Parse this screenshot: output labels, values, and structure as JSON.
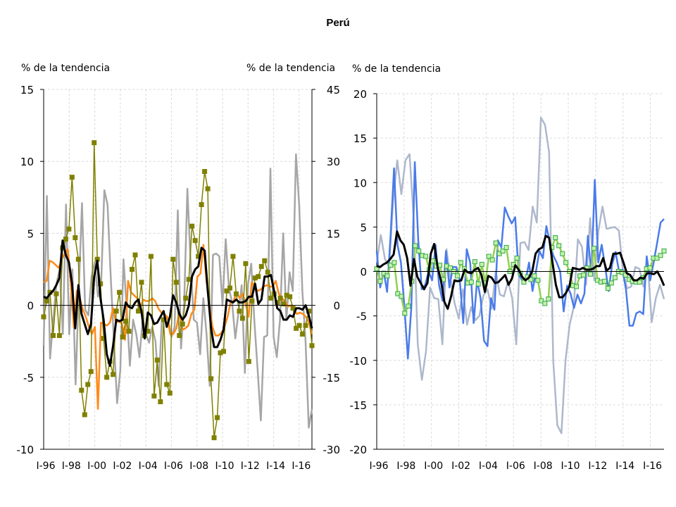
{
  "title": "Perú",
  "chart_data": [
    {
      "type": "line",
      "ylabel_left": "% de la tendencia",
      "ylabel_right": "% de la tendencia",
      "ylim_left": [
        -10,
        15
      ],
      "yticks_left": [
        15,
        10,
        5,
        0,
        -5,
        -10
      ],
      "ylim_right": [
        -30,
        45
      ],
      "yticks_right": [
        45,
        30,
        15,
        0,
        -15,
        -30
      ],
      "xticks": [
        "I-96",
        "I-98",
        "I-00",
        "I-02",
        "I-04",
        "I-06",
        "I-08",
        "I-10",
        "I-12",
        "I-14",
        "I-16"
      ],
      "grid": true,
      "series": [
        {
          "color": "#A6A6A6",
          "width": 2.5,
          "markers": false,
          "values": [
            -2.8,
            7.6,
            -3.7,
            -1.0,
            1.5,
            2.5,
            -2.0,
            7.0,
            -2.0,
            2.5,
            -5.5,
            1.0,
            7.1,
            -0.3,
            -0.7,
            2.0,
            3.0,
            0.6,
            1.5,
            8.0,
            7.0,
            2.0,
            -2.5,
            -6.8,
            -4.5,
            3.2,
            -0.2,
            -4.2,
            -1.0,
            -2.0,
            -3.6,
            -1.0,
            -2.0,
            -2.6,
            -1.5,
            -2.5,
            -5.6,
            -1.0,
            -0.8,
            -1.0,
            -2.2,
            -1.5,
            6.6,
            -3.0,
            0.2,
            8.1,
            3.0,
            -1.0,
            -1.2,
            -3.4,
            0.5,
            -2.0,
            -5.6,
            3.5,
            3.6,
            3.4,
            0.0,
            4.6,
            1.2,
            0.2,
            -2.3,
            -0.5,
            1.4,
            -4.7,
            1.5,
            2.9,
            -1.2,
            -4.5,
            -8.0,
            -2.2,
            -2.1,
            9.5,
            -2.2,
            -3.6,
            -1.0,
            5.0,
            -1.0,
            2.3,
            1.0,
            10.5,
            7.0,
            1.0,
            -2.5,
            -8.5,
            -7.2
          ]
        },
        {
          "color": "#FF8A1A",
          "width": 2.5,
          "markers": false,
          "values": [
            1.6,
            1.7,
            3.1,
            3.0,
            2.8,
            2.6,
            3.2,
            3.6,
            3.9,
            1.5,
            -1.5,
            1.0,
            0.5,
            -0.3,
            -0.8,
            -1.5,
            -2.0,
            -1.5,
            -7.2,
            -1.2,
            -1.3,
            -1.4,
            -1.2,
            -0.2,
            -1.2,
            -1.1,
            -1.3,
            -2.4,
            1.7,
            0.9,
            0.7,
            0.5,
            -0.2,
            0.4,
            0.3,
            0.3,
            0.5,
            0.3,
            -0.2,
            -0.5,
            -0.6,
            -0.8,
            -2.0,
            -2.0,
            -1.6,
            -0.5,
            -1.7,
            -1.6,
            -1.4,
            -0.6,
            -0.3,
            2.0,
            2.2,
            4.2,
            1.7,
            0.0,
            -1.5,
            -2.1,
            -2.1,
            -1.9,
            -1.5,
            -0.8,
            0.2,
            0.3,
            0.9,
            0.5,
            0.8,
            0.1,
            -0.8,
            1.6,
            1.3,
            1.0,
            1.1,
            1.3,
            1.4,
            1.3,
            1.3,
            1.7,
            0.8,
            0.5,
            0.3,
            -0.1,
            0.0,
            -0.3,
            -0.6,
            -0.5,
            -0.6,
            -0.8,
            -1.2,
            -2.0
          ]
        },
        {
          "color": "#808000",
          "width": 1.5,
          "markers": true,
          "marker_fill": "#808000",
          "values": [
            -0.8,
            0.3,
            0.9,
            -2.1,
            0.8,
            -2.1,
            4.0,
            4.6,
            5.3,
            8.9,
            4.7,
            3.2,
            -5.9,
            -7.6,
            -5.5,
            -4.6,
            11.3,
            3.2,
            1.5,
            -2.3,
            -5.0,
            -3.9,
            -4.8,
            -0.4,
            0.9,
            -2.2,
            -1.1,
            -1.8,
            2.5,
            3.5,
            -0.4,
            1.6,
            -2.1,
            -1.8,
            3.4,
            -6.3,
            -3.8,
            -6.7,
            -1.0,
            -5.5,
            -6.1,
            3.2,
            1.6,
            -2.1,
            -1.3,
            0.5,
            1.8,
            5.5,
            4.5,
            3.4,
            7.0,
            9.3,
            8.1,
            -5.1,
            -9.2,
            -7.8,
            -3.3,
            -3.2,
            1.0,
            1.2,
            3.4,
            0.8,
            -0.4,
            -0.9,
            2.9,
            -3.9,
            0.3,
            1.9,
            2.0,
            2.7,
            3.1,
            2.3,
            0.5,
            0.8,
            0.2,
            0.5,
            0.1,
            0.7,
            0.6,
            -0.2,
            -1.6,
            -1.4,
            -2.0,
            -1.4,
            -0.4,
            -2.8
          ]
        },
        {
          "color": "#000000",
          "width": 3,
          "markers": false,
          "values": [
            0.6,
            0.5,
            0.8,
            1.0,
            1.4,
            1.9,
            4.5,
            3.5,
            3.0,
            1.5,
            -1.6,
            1.4,
            -0.6,
            -1.3,
            -2.0,
            -1.3,
            2.0,
            3.1,
            0.5,
            -1.0,
            -3.4,
            -4.2,
            -2.8,
            -1.0,
            -1.1,
            -1.0,
            0.2,
            -0.1,
            -0.2,
            0.2,
            0.4,
            -0.4,
            -2.3,
            -0.5,
            -0.7,
            -1.3,
            -1.2,
            -0.8,
            -0.4,
            -1.5,
            -0.8,
            0.7,
            0.2,
            -0.6,
            -1.0,
            -0.7,
            0.0,
            2.0,
            2.5,
            2.7,
            4.0,
            3.8,
            1.0,
            -1.5,
            -2.9,
            -2.9,
            -2.4,
            -1.7,
            0.4,
            0.3,
            0.2,
            0.4,
            0.2,
            0.2,
            0.3,
            0.6,
            0.6,
            1.5,
            0.1,
            0.4,
            2.0,
            2.0,
            2.1,
            1.0,
            -0.2,
            -0.4,
            -1.0,
            -1.0,
            -0.7,
            -0.8,
            -0.2,
            -0.2,
            -0.3,
            0.0,
            -0.7,
            -1.6
          ]
        }
      ]
    },
    {
      "type": "line",
      "ylabel_left": "% de la tendencia",
      "ylim_left": [
        -20,
        20
      ],
      "yticks_left": [
        20,
        15,
        10,
        5,
        0,
        -5,
        -10,
        -15,
        -20
      ],
      "xticks": [
        "I-96",
        "I-98",
        "I-00",
        "I-02",
        "I-04",
        "I-06",
        "I-08",
        "I-10",
        "I-12",
        "I-14",
        "I-16"
      ],
      "grid": true,
      "series": [
        {
          "color": "#AEB8CC",
          "width": 2.5,
          "markers": false,
          "values": [
            1.0,
            4.1,
            1.4,
            0.5,
            8.0,
            12.5,
            8.7,
            12.5,
            13.2,
            6.0,
            -8.2,
            -12.2,
            -9.0,
            -1.8,
            -3.0,
            -3.1,
            -8.2,
            2.5,
            -1.0,
            -3.6,
            -5.3,
            -2.0,
            -6.0,
            -4.0,
            -5.5,
            -5.0,
            -2.7,
            -2.0,
            -4.2,
            0.0,
            -2.6,
            -2.8,
            -1.1,
            -3.0,
            -8.2,
            3.2,
            3.3,
            2.4,
            7.3,
            5.5,
            17.3,
            16.5,
            13.4,
            -10.0,
            -17.3,
            -18.2,
            -10.0,
            -6.0,
            -4.0,
            3.6,
            2.8,
            -1.5,
            6.0,
            -1.0,
            4.5,
            7.3,
            4.8,
            4.9,
            5.0,
            4.6,
            0.0,
            -1.9,
            -1.7,
            0.5,
            0.3,
            -1.7,
            1.0,
            -5.7,
            -3.0,
            -1.5,
            -3.1
          ]
        },
        {
          "color": "#4A7BEA",
          "width": 2.5,
          "markers": false,
          "values": [
            2.3,
            -1.8,
            0.0,
            -2.3,
            4.0,
            11.6,
            3.0,
            1.0,
            -4.0,
            -9.8,
            -4.0,
            12.3,
            3.5,
            -2.0,
            -1.5,
            0.0,
            -1.0,
            3.0,
            -1.5,
            -3.3,
            2.3,
            -1.8,
            0.5,
            0.5,
            -1.0,
            -5.8,
            2.5,
            1.0,
            -5.8,
            -1.0,
            -3.0,
            -7.8,
            -8.4,
            -3.0,
            -4.3,
            3.5,
            2.7,
            7.2,
            6.2,
            5.4,
            6.1,
            -0.3,
            -1.0,
            -1.0,
            1.0,
            -2.2,
            0.0,
            2.3,
            1.5,
            5.1,
            3.3,
            1.8,
            1.0,
            0.0,
            -4.5,
            -1.6,
            -2.5,
            -4.1,
            -2.6,
            -3.6,
            -2.5,
            4.0,
            -0.3,
            10.3,
            1.0,
            3.0,
            0.5,
            -2.2,
            0.8,
            2.2,
            0.0,
            0.2,
            -2.0,
            -6.1,
            -6.1,
            -4.7,
            -4.5,
            -4.8,
            1.7,
            -1.0,
            1.0,
            3.2,
            5.5,
            5.9
          ]
        },
        {
          "color": "#92D050",
          "width": 2.5,
          "markers": true,
          "marker_fill": "#C8F0A8",
          "marker_stroke": "#2EAA4A",
          "values": [
            0.3,
            -1.1,
            -0.2,
            -0.5,
            0.7,
            1.0,
            -2.5,
            -2.8,
            -4.7,
            -3.9,
            -1.1,
            2.9,
            2.3,
            1.8,
            1.7,
            0.2,
            1.2,
            0.6,
            0.7,
            -0.9,
            0.6,
            0.4,
            0.0,
            -0.5,
            1.0,
            0.3,
            -1.3,
            -1.2,
            1.1,
            -1.4,
            0.8,
            -1.3,
            1.7,
            1.3,
            3.2,
            2.0,
            2.3,
            2.7,
            0.0,
            0.8,
            1.5,
            -0.2,
            -1.2,
            -0.6,
            -0.9,
            -0.5,
            -1.0,
            -3.3,
            -3.6,
            -3.1,
            2.7,
            3.8,
            2.9,
            2.0,
            1.0,
            0.0,
            -1.6,
            -1.7,
            -0.5,
            -0.4,
            0.4,
            -0.3,
            2.6,
            -1.0,
            -1.2,
            -1.1,
            -1.9,
            -1.3,
            -0.7,
            0.0,
            -0.1,
            -0.4,
            -0.9,
            -1.1,
            -1.2,
            -1.2,
            -0.7,
            0.3,
            0.4,
            1.5,
            1.5,
            1.8,
            2.3
          ]
        },
        {
          "color": "#000000",
          "width": 3,
          "markers": false,
          "values": [
            0.6,
            0.5,
            0.8,
            1.0,
            1.4,
            1.9,
            4.5,
            3.5,
            3.0,
            1.5,
            -1.6,
            1.4,
            -0.6,
            -1.3,
            -2.0,
            -1.3,
            2.0,
            3.1,
            0.5,
            -1.0,
            -3.4,
            -4.2,
            -2.8,
            -1.0,
            -1.1,
            -1.0,
            0.2,
            -0.1,
            -0.2,
            0.2,
            0.4,
            -0.4,
            -2.3,
            -0.5,
            -0.7,
            -1.3,
            -1.2,
            -0.8,
            -0.4,
            -1.5,
            -0.8,
            0.7,
            0.2,
            -0.6,
            -1.0,
            -0.7,
            0.0,
            2.0,
            2.5,
            2.7,
            4.0,
            3.8,
            1.0,
            -1.5,
            -2.9,
            -2.9,
            -2.4,
            -1.7,
            0.4,
            0.3,
            0.2,
            0.4,
            0.2,
            0.2,
            0.3,
            0.6,
            0.6,
            1.5,
            0.1,
            0.4,
            2.0,
            2.0,
            2.1,
            1.0,
            -0.2,
            -0.4,
            -1.0,
            -1.0,
            -0.7,
            -0.8,
            -0.2,
            -0.2,
            -0.3,
            0.0,
            -0.7,
            -1.6
          ]
        }
      ]
    }
  ]
}
